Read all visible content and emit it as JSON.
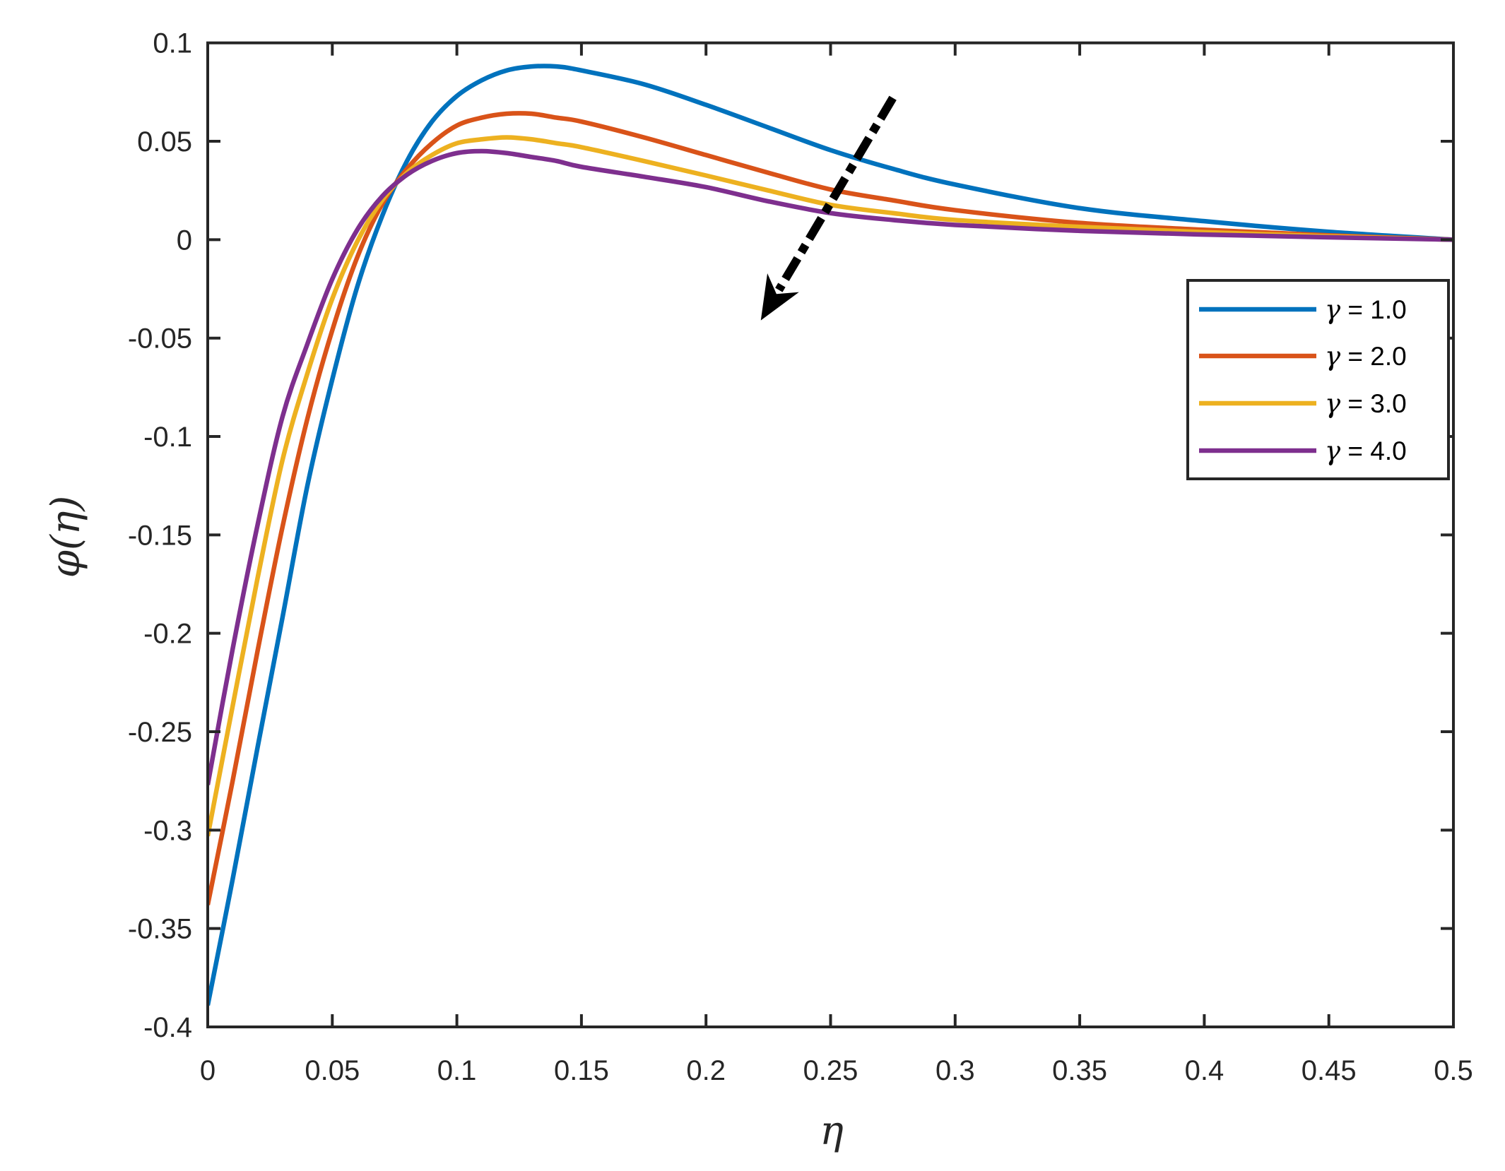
{
  "chart_data": {
    "type": "line",
    "title": "",
    "xlabel": "η",
    "ylabel": "φ(η)",
    "xlim": [
      0,
      0.5
    ],
    "ylim": [
      -0.4,
      0.1
    ],
    "grid": false,
    "legend_position": "upper right (inside, below 0)",
    "xticks": [
      0,
      0.05,
      0.1,
      0.15,
      0.2,
      0.25,
      0.3,
      0.35,
      0.4,
      0.45,
      0.5
    ],
    "xtick_labels": [
      "0",
      "0.05",
      "0.1",
      "0.15",
      "0.2",
      "0.25",
      "0.3",
      "0.35",
      "0.4",
      "0.45",
      "0.5"
    ],
    "yticks": [
      0.1,
      0.05,
      0,
      -0.05,
      -0.1,
      -0.15,
      -0.2,
      -0.25,
      -0.3,
      -0.35,
      -0.4
    ],
    "ytick_labels": [
      "0.1",
      "0.05",
      "0",
      "-0.05",
      "-0.1",
      "-0.15",
      "-0.2",
      "-0.25",
      "-0.3",
      "-0.35",
      "-0.4"
    ],
    "x": [
      0,
      0.01,
      0.02,
      0.03,
      0.04,
      0.05,
      0.06,
      0.07,
      0.08,
      0.09,
      0.1,
      0.11,
      0.12,
      0.13,
      0.14,
      0.15,
      0.175,
      0.2,
      0.225,
      0.25,
      0.275,
      0.3,
      0.35,
      0.4,
      0.45,
      0.5
    ],
    "series": [
      {
        "name": "γ = 1.0",
        "color": "#0072BD",
        "values": [
          -0.389,
          -0.325,
          -0.258,
          -0.192,
          -0.125,
          -0.071,
          -0.024,
          0.012,
          0.04,
          0.06,
          0.073,
          0.081,
          0.086,
          0.088,
          0.088,
          0.086,
          0.079,
          0.0685,
          0.057,
          0.0455,
          0.036,
          0.028,
          0.016,
          0.0094,
          0.004,
          0
        ]
      },
      {
        "name": "γ = 2.0",
        "color": "#D95319",
        "values": [
          -0.338,
          -0.275,
          -0.209,
          -0.146,
          -0.091,
          -0.046,
          -0.009,
          0.018,
          0.036,
          0.049,
          0.058,
          0.062,
          0.064,
          0.064,
          0.062,
          0.06,
          0.052,
          0.043,
          0.034,
          0.0255,
          0.02,
          0.015,
          0.0085,
          0.005,
          0.0022,
          0
        ]
      },
      {
        "name": "γ = 3.0",
        "color": "#EDB120",
        "values": [
          -0.303,
          -0.237,
          -0.172,
          -0.112,
          -0.068,
          -0.03,
          -0.001,
          0.02,
          0.034,
          0.043,
          0.049,
          0.051,
          0.052,
          0.051,
          0.049,
          0.047,
          0.04,
          0.0326,
          0.025,
          0.0177,
          0.0135,
          0.01,
          0.0065,
          0.0038,
          0.0017,
          0
        ]
      },
      {
        "name": "γ = 4.0",
        "color": "#7E2F8E",
        "values": [
          -0.277,
          -0.208,
          -0.145,
          -0.09,
          -0.053,
          -0.02,
          0.005,
          0.022,
          0.033,
          0.04,
          0.044,
          0.045,
          0.044,
          0.042,
          0.04,
          0.037,
          0.032,
          0.0267,
          0.0195,
          0.0135,
          0.01,
          0.0075,
          0.0045,
          0.0026,
          0.0012,
          0
        ]
      }
    ],
    "annotations": [
      {
        "type": "arrow",
        "style": "dash-dot",
        "color": "#000000",
        "from": [
          0.275,
          0.072
        ],
        "to": [
          0.222,
          -0.041
        ],
        "meaning": "increasing γ"
      }
    ]
  },
  "legend": {
    "items": [
      {
        "symbol": "γ",
        "text": " = 1.0",
        "color": "#0072BD"
      },
      {
        "symbol": "γ",
        "text": " = 2.0",
        "color": "#D95319"
      },
      {
        "symbol": "γ",
        "text": " = 3.0",
        "color": "#EDB120"
      },
      {
        "symbol": "γ",
        "text": " = 4.0",
        "color": "#7E2F8E"
      }
    ]
  },
  "axes": {
    "xlabel": "η",
    "ylabel": "φ(η)",
    "axis_color": "#262626"
  }
}
